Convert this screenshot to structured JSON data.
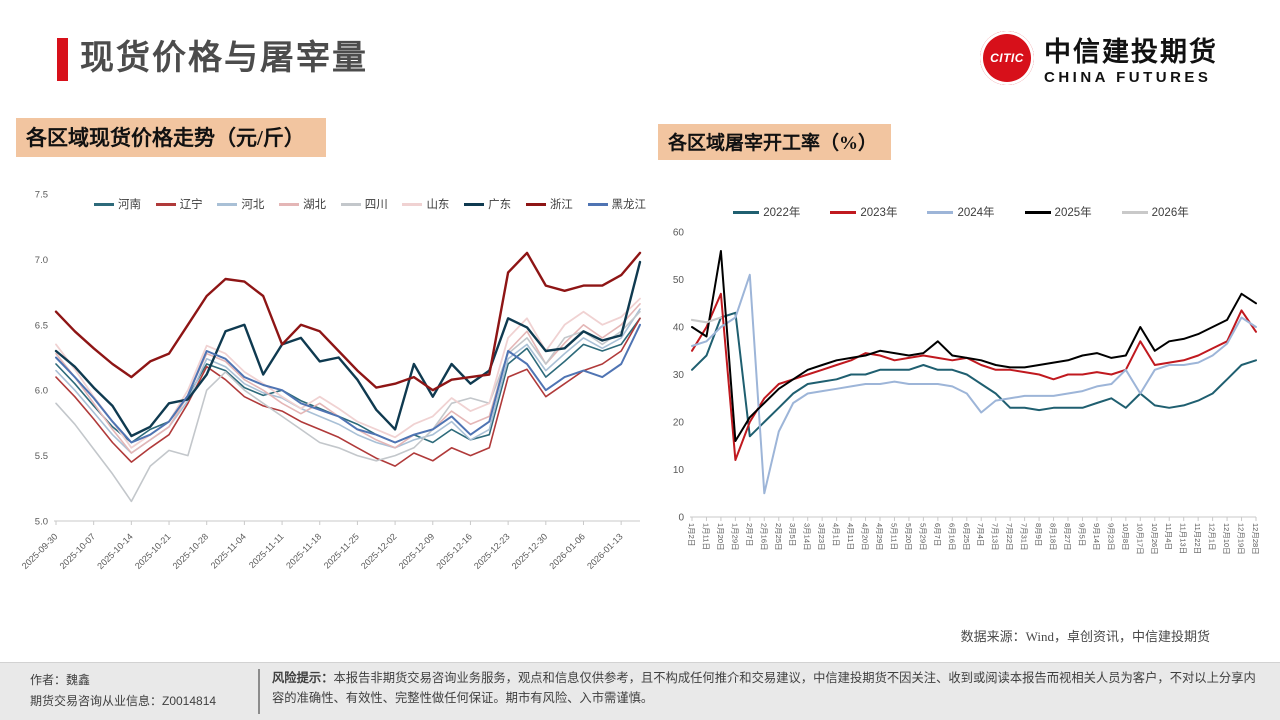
{
  "header": {
    "title": "现货价格与屠宰量",
    "logo_mark": "CITIC",
    "logo_cn": "中信建投期货",
    "logo_en": "CHINA FUTURES"
  },
  "panels": {
    "left_title": "各区域现货价格走势（元/斤）",
    "right_title": "各区域屠宰开工率（%）"
  },
  "source_note": "数据来源：Wind，卓创资讯，中信建投期货",
  "footer": {
    "author_line": "作者：魏鑫",
    "license_line": "期货交易咨询从业信息：Z0014814",
    "risk_label": "风险提示：",
    "risk_text": "本报告非期货交易咨询业务服务，观点和信息仅供参考，且不构成任何推介和交易建议，中信建投期货不因关注、收到或阅读本报告而视相关人员为客户，不对以上分享内容的准确性、有效性、完整性做任何保证。期市有风险、入市需谨慎。"
  },
  "colors": {
    "accent_red": "#d7101a",
    "badge_bg": "#f2c5a0",
    "title_gray": "#4c4c4c",
    "axis_gray": "#d4d4d4"
  },
  "chart_data": [
    {
      "id": "price",
      "type": "line",
      "title": "各区域现货价格走势（元/斤）",
      "ylabel": "元/斤",
      "ylim": [
        5.0,
        7.5
      ],
      "ytick_step": 0.5,
      "y_decimals": 1,
      "grid": false,
      "legend_position": "top",
      "points_per_label": 2,
      "x_labels": [
        "2025-09-30",
        "2025-10-07",
        "2025-10-14",
        "2025-10-21",
        "2025-10-28",
        "2025-11-04",
        "2025-11-11",
        "2025-11-18",
        "2025-11-25",
        "2025-12-02",
        "2025-12-09",
        "2025-12-16",
        "2025-12-23",
        "2025-12-30",
        "2026-01-06",
        "2026-01-13"
      ],
      "series": [
        {
          "name": "河南",
          "color": "#2d6a7a",
          "width": 1.6,
          "values": [
            6.2,
            6.05,
            5.88,
            5.72,
            5.6,
            5.7,
            5.76,
            5.95,
            6.2,
            6.15,
            6.02,
            5.96,
            6.0,
            5.92,
            5.86,
            5.8,
            5.74,
            5.66,
            5.6,
            5.66,
            5.6,
            5.7,
            5.62,
            5.66,
            6.2,
            6.32,
            6.1,
            6.22,
            6.35,
            6.3,
            6.35,
            6.55
          ]
        },
        {
          "name": "辽宁",
          "color": "#b03a3a",
          "width": 1.6,
          "values": [
            6.1,
            5.95,
            5.78,
            5.6,
            5.45,
            5.56,
            5.66,
            5.9,
            6.18,
            6.08,
            5.95,
            5.88,
            5.84,
            5.76,
            5.7,
            5.64,
            5.56,
            5.48,
            5.42,
            5.52,
            5.46,
            5.56,
            5.5,
            5.56,
            6.1,
            6.16,
            5.95,
            6.05,
            6.15,
            6.2,
            6.3,
            6.55
          ]
        },
        {
          "name": "河北",
          "color": "#a9c0d6",
          "width": 1.6,
          "values": [
            6.15,
            6.0,
            5.83,
            5.66,
            5.52,
            5.62,
            5.72,
            5.92,
            6.24,
            6.18,
            6.05,
            5.98,
            5.94,
            5.86,
            5.8,
            5.74,
            5.66,
            5.6,
            5.56,
            5.62,
            5.66,
            5.76,
            5.62,
            5.7,
            6.24,
            6.35,
            6.15,
            6.28,
            6.4,
            6.32,
            6.4,
            6.62
          ]
        },
        {
          "name": "湖北",
          "color": "#e4b6b6",
          "width": 1.6,
          "values": [
            6.28,
            6.1,
            5.9,
            5.7,
            5.52,
            5.62,
            5.72,
            5.96,
            6.28,
            6.22,
            6.08,
            6.0,
            5.9,
            5.82,
            5.9,
            5.8,
            5.7,
            5.62,
            5.56,
            5.66,
            5.7,
            5.84,
            5.74,
            5.8,
            6.3,
            6.45,
            6.2,
            6.36,
            6.5,
            6.4,
            6.5,
            6.66
          ]
        },
        {
          "name": "四川",
          "color": "#c3c7cb",
          "width": 1.6,
          "values": [
            5.9,
            5.74,
            5.55,
            5.36,
            5.15,
            5.42,
            5.54,
            5.5,
            6.0,
            6.14,
            6.0,
            5.9,
            5.8,
            5.7,
            5.6,
            5.56,
            5.5,
            5.46,
            5.5,
            5.56,
            5.7,
            5.9,
            5.94,
            5.9,
            6.28,
            6.4,
            6.2,
            6.4,
            6.45,
            6.35,
            6.45,
            6.6
          ]
        },
        {
          "name": "山东",
          "color": "#f0d2d2",
          "width": 1.8,
          "values": [
            6.35,
            6.16,
            5.95,
            5.76,
            5.56,
            5.66,
            5.76,
            6.0,
            6.34,
            6.28,
            6.14,
            6.05,
            5.95,
            5.86,
            5.95,
            5.86,
            5.76,
            5.7,
            5.64,
            5.74,
            5.8,
            5.94,
            5.84,
            5.9,
            6.4,
            6.55,
            6.3,
            6.5,
            6.6,
            6.5,
            6.56,
            6.7
          ]
        },
        {
          "name": "广东",
          "color": "#0f3a50",
          "width": 2.4,
          "values": [
            6.3,
            6.18,
            6.02,
            5.88,
            5.65,
            5.72,
            5.9,
            5.93,
            6.12,
            6.45,
            6.5,
            6.12,
            6.35,
            6.4,
            6.22,
            6.25,
            6.08,
            5.85,
            5.7,
            6.2,
            5.95,
            6.2,
            6.05,
            6.15,
            6.55,
            6.48,
            6.3,
            6.32,
            6.45,
            6.38,
            6.42,
            6.98
          ]
        },
        {
          "name": "浙江",
          "color": "#8e1515",
          "width": 2.4,
          "values": [
            6.6,
            6.45,
            6.32,
            6.2,
            6.1,
            6.22,
            6.28,
            6.5,
            6.72,
            6.85,
            6.83,
            6.72,
            6.35,
            6.5,
            6.45,
            6.3,
            6.15,
            6.02,
            6.05,
            6.1,
            6.0,
            6.08,
            6.1,
            6.12,
            6.9,
            7.05,
            6.8,
            6.76,
            6.8,
            6.8,
            6.88,
            7.05
          ]
        },
        {
          "name": "黑龙江",
          "color": "#4f74b3",
          "width": 2.0,
          "values": [
            6.25,
            6.1,
            5.94,
            5.76,
            5.6,
            5.66,
            5.76,
            5.96,
            6.3,
            6.24,
            6.1,
            6.04,
            6.0,
            5.9,
            5.85,
            5.8,
            5.7,
            5.66,
            5.6,
            5.66,
            5.7,
            5.8,
            5.66,
            5.76,
            6.3,
            6.2,
            6.0,
            6.1,
            6.15,
            6.1,
            6.2,
            6.5
          ]
        }
      ]
    },
    {
      "id": "slaughter",
      "type": "line",
      "title": "各区域屠宰开工率（%）",
      "ylabel": "%",
      "ylim": [
        0,
        60
      ],
      "ytick_step": 10,
      "y_decimals": 0,
      "grid": false,
      "legend_position": "top",
      "points_per_label": 1,
      "x_labels": [
        "1月2日",
        "1月11日",
        "1月20日",
        "1月29日",
        "2月7日",
        "2月16日",
        "2月25日",
        "3月5日",
        "3月14日",
        "3月23日",
        "4月1日",
        "4月11日",
        "4月20日",
        "4月29日",
        "5月11日",
        "5月20日",
        "5月29日",
        "6月7日",
        "6月16日",
        "6月25日",
        "7月4日",
        "7月13日",
        "7月22日",
        "7月31日",
        "8月9日",
        "8月18日",
        "8月27日",
        "9月5日",
        "9月14日",
        "9月23日",
        "10月8日",
        "10月17日",
        "10月26日",
        "11月4日",
        "11月13日",
        "11月22日",
        "12月1日",
        "12月10日",
        "12月19日",
        "12月28日"
      ],
      "series": [
        {
          "name": "2022年",
          "color": "#1f5f70",
          "width": 2.0,
          "values": [
            31,
            34,
            42,
            43,
            17,
            20,
            23,
            26,
            28,
            28.5,
            29,
            30,
            30,
            31,
            31,
            31,
            32,
            31,
            31,
            30,
            28,
            26,
            23,
            23,
            22.5,
            23,
            23,
            23,
            24,
            25,
            23,
            26,
            23.5,
            23,
            23.5,
            24.5,
            26,
            29,
            32,
            33
          ]
        },
        {
          "name": "2023年",
          "color": "#c0191f",
          "width": 2.0,
          "values": [
            35,
            40,
            47,
            12,
            20,
            25,
            28,
            29,
            30,
            31,
            32,
            33,
            34.5,
            34,
            33,
            33.5,
            34,
            33.5,
            33,
            33.5,
            32,
            31,
            31,
            30.5,
            30,
            29,
            30,
            30,
            30.5,
            30,
            31,
            37,
            32,
            32.5,
            33,
            34,
            35.5,
            37,
            43.5,
            39
          ]
        },
        {
          "name": "2024年",
          "color": "#9db5d8",
          "width": 2.0,
          "values": [
            36,
            37,
            40,
            42,
            51,
            5,
            18,
            24,
            26,
            26.5,
            27,
            27.5,
            28,
            28,
            28.5,
            28,
            28,
            28,
            27.5,
            26,
            22,
            24.5,
            25,
            25.5,
            25.5,
            25.5,
            26,
            26.5,
            27.5,
            28,
            31,
            26,
            31,
            32,
            32,
            32.5,
            34,
            36.5,
            42,
            40
          ]
        },
        {
          "name": "2025年",
          "color": "#000000",
          "width": 2.0,
          "values": [
            40,
            38,
            56,
            16,
            21,
            24,
            27,
            29,
            31,
            32,
            33,
            33.5,
            34,
            35,
            34.5,
            34,
            34.5,
            37,
            34,
            33.5,
            33,
            32,
            31.5,
            31.5,
            32,
            32.5,
            33,
            34,
            34.5,
            33.5,
            34,
            40,
            35,
            37,
            37.5,
            38.5,
            40,
            41.5,
            47,
            45
          ]
        },
        {
          "name": "2026年",
          "color": "#c9c9c9",
          "width": 2.2,
          "values": [
            41.5,
            41,
            42,
            null,
            null,
            null,
            null,
            null,
            null,
            null,
            null,
            null,
            null,
            null,
            null,
            null,
            null,
            null,
            null,
            null,
            null,
            null,
            null,
            null,
            null,
            null,
            null,
            null,
            null,
            null,
            null,
            null,
            null,
            null,
            null,
            null,
            null,
            null,
            null,
            null
          ]
        }
      ]
    }
  ]
}
